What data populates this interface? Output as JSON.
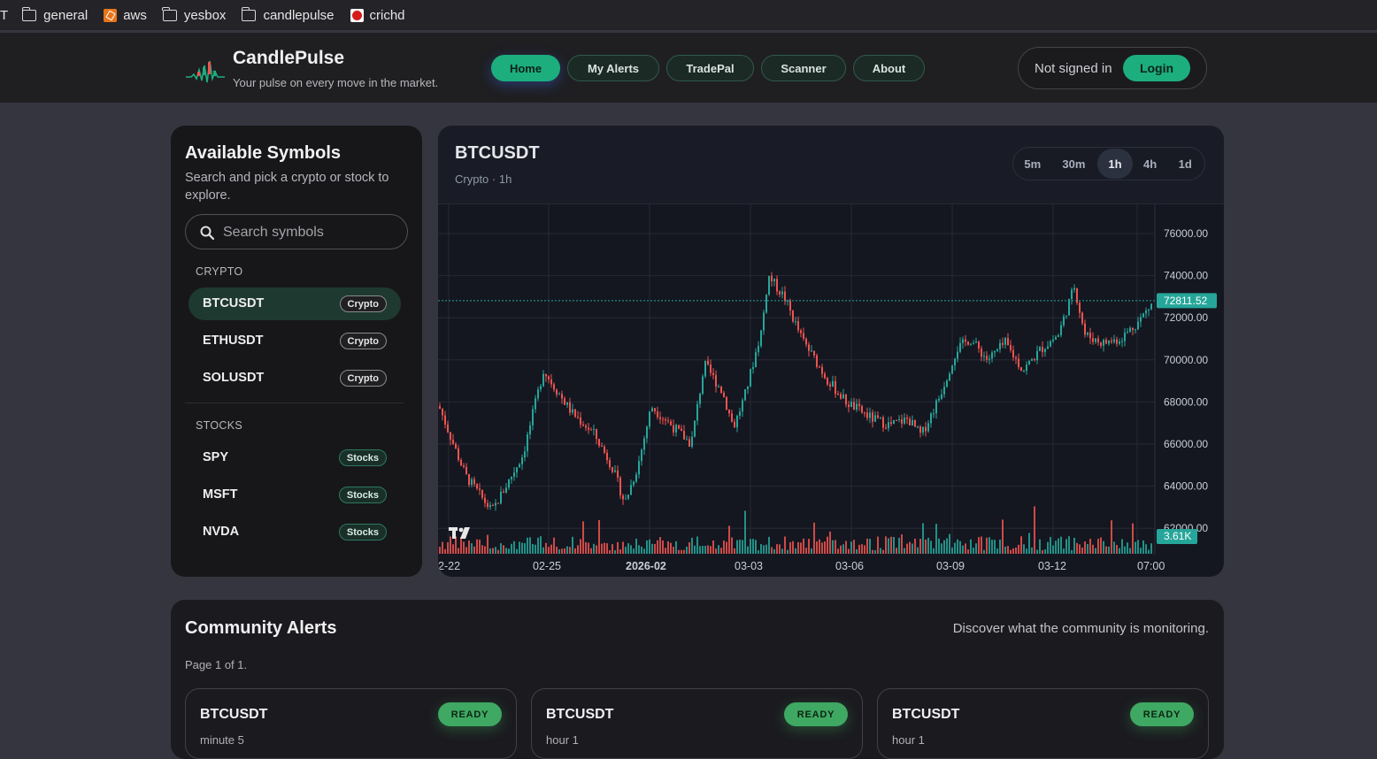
{
  "bookmarks": [
    {
      "label": "T",
      "icon": "none"
    },
    {
      "label": "general",
      "icon": "folder-icon"
    },
    {
      "label": "aws",
      "icon": "aws-icon"
    },
    {
      "label": "yesbox",
      "icon": "folder-icon"
    },
    {
      "label": "candlepulse",
      "icon": "folder-icon"
    },
    {
      "label": "crichd",
      "icon": "crichd-icon"
    }
  ],
  "header": {
    "brand": "CandlePulse",
    "tagline": "Your pulse on every move in the market.",
    "nav": [
      "Home",
      "My Alerts",
      "TradePal",
      "Scanner",
      "About"
    ],
    "active_nav": "Home",
    "auth_status": "Not signed in",
    "login_label": "Login"
  },
  "sidebar": {
    "title": "Available Symbols",
    "description": "Search and pick a crypto or stock to explore.",
    "search_placeholder": "Search symbols",
    "groups": [
      {
        "label": "CRYPTO",
        "items": [
          {
            "symbol": "BTCUSDT",
            "badge": "Crypto",
            "active": true
          },
          {
            "symbol": "ETHUSDT",
            "badge": "Crypto"
          },
          {
            "symbol": "SOLUSDT",
            "badge": "Crypto"
          }
        ]
      },
      {
        "label": "STOCKS",
        "items": [
          {
            "symbol": "SPY",
            "badge": "Stocks"
          },
          {
            "symbol": "MSFT",
            "badge": "Stocks"
          },
          {
            "symbol": "NVDA",
            "badge": "Stocks"
          }
        ]
      }
    ]
  },
  "chart_panel": {
    "symbol": "BTCUSDT",
    "subtitle": "Crypto · 1h",
    "timeframes": [
      "5m",
      "30m",
      "1h",
      "4h",
      "1d"
    ],
    "active_timeframe": "1h"
  },
  "chart_data": {
    "type": "candlestick",
    "y_ticks": [
      "76000.00",
      "74000.00",
      "72000.00",
      "70000.00",
      "68000.00",
      "66000.00",
      "64000.00",
      "62000.00"
    ],
    "ylim": [
      61000,
      77000
    ],
    "x_ticks": [
      "2-22",
      "02-25",
      "2026-02",
      "03-03",
      "03-06",
      "03-09",
      "03-12",
      "07:00"
    ],
    "last_price": "72811.52",
    "last_volume": "3.61K",
    "close_path": [
      [
        0,
        67800
      ],
      [
        30,
        64500
      ],
      [
        60,
        62800
      ],
      [
        95,
        65500
      ],
      [
        118,
        69500
      ],
      [
        150,
        67500
      ],
      [
        175,
        66500
      ],
      [
        195,
        65000
      ],
      [
        210,
        63200
      ],
      [
        225,
        65000
      ],
      [
        240,
        67800
      ],
      [
        265,
        66800
      ],
      [
        285,
        66000
      ],
      [
        300,
        69800
      ],
      [
        320,
        68500
      ],
      [
        333,
        66800
      ],
      [
        345,
        68200
      ],
      [
        365,
        71500
      ],
      [
        372,
        74000
      ],
      [
        390,
        73000
      ],
      [
        410,
        71000
      ],
      [
        440,
        69000
      ],
      [
        460,
        68000
      ],
      [
        490,
        67200
      ],
      [
        510,
        66900
      ],
      [
        530,
        67200
      ],
      [
        545,
        66400
      ],
      [
        565,
        68200
      ],
      [
        585,
        70500
      ],
      [
        600,
        71000
      ],
      [
        620,
        70000
      ],
      [
        640,
        70800
      ],
      [
        660,
        69500
      ],
      [
        680,
        70500
      ],
      [
        700,
        71200
      ],
      [
        718,
        73500
      ],
      [
        730,
        71200
      ],
      [
        750,
        70800
      ],
      [
        770,
        71000
      ],
      [
        790,
        71800
      ],
      [
        808,
        72800
      ]
    ],
    "colors": {
      "up": "#26a69a",
      "down": "#ef5350",
      "accent": "#1dae7e"
    }
  },
  "community": {
    "title": "Community Alerts",
    "description": "Discover what the community is monitoring.",
    "page_info": "Page 1 of 1.",
    "alerts": [
      {
        "symbol": "BTCUSDT",
        "timeframe": "minute 5",
        "status": "READY"
      },
      {
        "symbol": "BTCUSDT",
        "timeframe": "hour 1",
        "status": "READY"
      },
      {
        "symbol": "BTCUSDT",
        "timeframe": "hour 1",
        "status": "READY"
      }
    ]
  }
}
